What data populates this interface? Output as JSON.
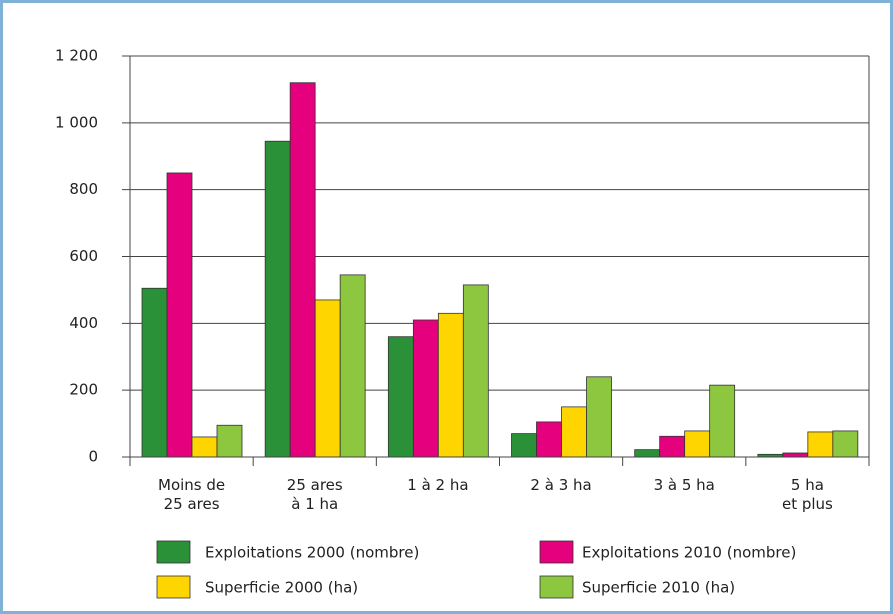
{
  "chart_data": {
    "type": "bar",
    "categories": [
      "Moins de\n25 ares",
      "25 ares\nà 1 ha",
      "1 à 2 ha",
      "2 à 3 ha",
      "3 à 5 ha",
      "5 ha\net plus"
    ],
    "series": [
      {
        "name": "Exploitations 2000 (nombre)",
        "color": "#2a9139",
        "values": [
          505,
          945,
          360,
          70,
          22,
          8
        ]
      },
      {
        "name": "Exploitations 2010 (nombre)",
        "color": "#e5007e",
        "values": [
          850,
          1120,
          410,
          105,
          62,
          12
        ]
      },
      {
        "name": "Superficie 2000 (ha)",
        "color": "#ffd500",
        "values": [
          60,
          470,
          430,
          150,
          78,
          75
        ]
      },
      {
        "name": "Superficie 2010 (ha)",
        "color": "#8dc63f",
        "values": [
          95,
          545,
          515,
          240,
          215,
          78
        ]
      }
    ],
    "ylim": [
      0,
      1200
    ],
    "yticks": [
      0,
      200,
      400,
      600,
      800,
      {
        "value": 1000,
        "label": "1 000"
      },
      {
        "value": 1200,
        "label": "1 200"
      }
    ],
    "grid": true
  }
}
